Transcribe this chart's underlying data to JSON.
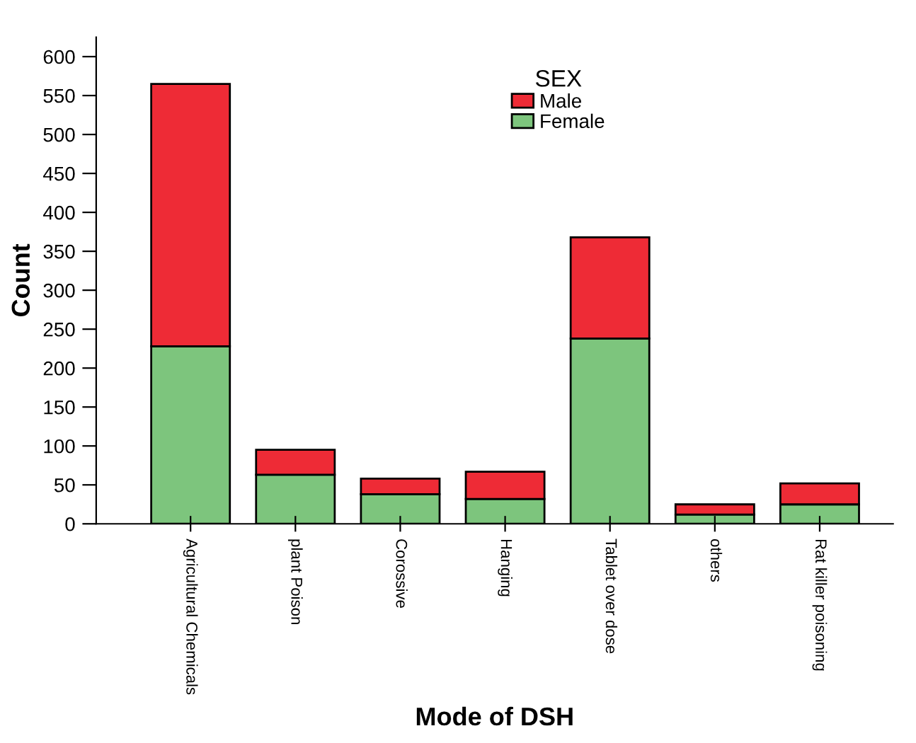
{
  "chart_data": {
    "type": "bar",
    "stacked": true,
    "xlabel": "Mode of DSH",
    "ylabel": "Count",
    "legend_title": "SEX",
    "legend": "top",
    "categories": [
      "Agricultural Chemicals",
      "plant Poison",
      "Corossive",
      "Hanging",
      "Tablet over dose",
      "others",
      "Rat killer poisoning"
    ],
    "series": [
      {
        "name": "Female",
        "color": "#7dc57d",
        "values": [
          228,
          63,
          38,
          32,
          238,
          12,
          25
        ]
      },
      {
        "name": "Male",
        "color": "#ee2b36",
        "values": [
          337,
          32,
          20,
          35,
          130,
          13,
          27
        ]
      }
    ],
    "ylim": [
      0,
      625
    ],
    "yticks": [
      0,
      50,
      100,
      150,
      200,
      250,
      300,
      350,
      400,
      450,
      500,
      550,
      600
    ],
    "grid": false
  }
}
